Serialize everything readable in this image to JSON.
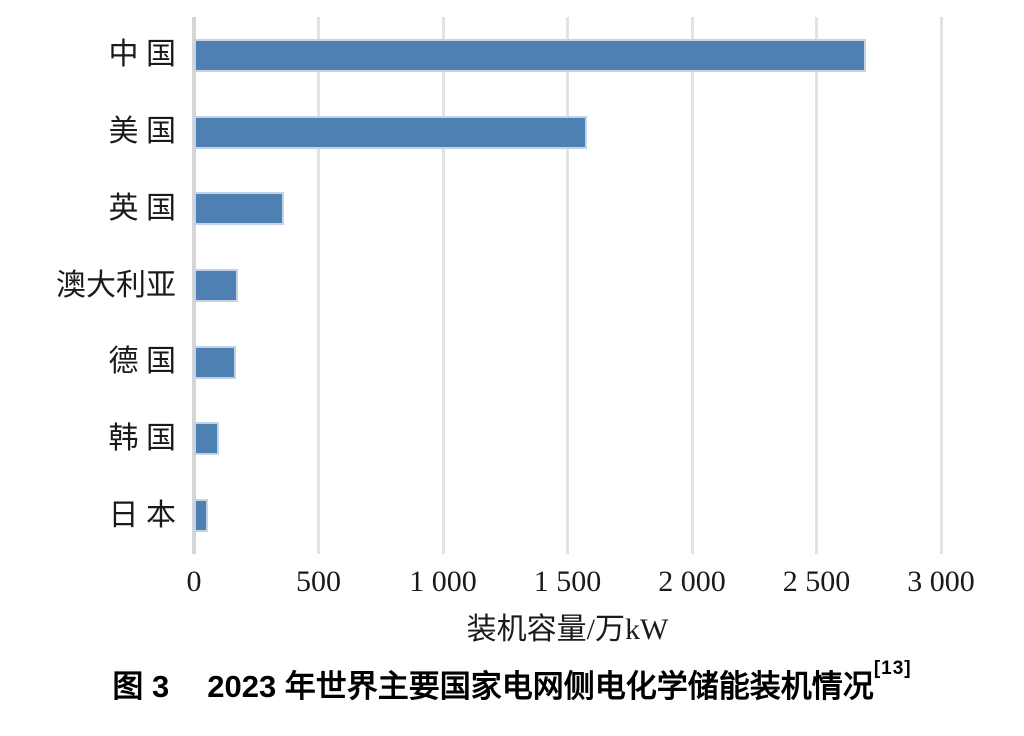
{
  "figure": {
    "caption_label": "图 3",
    "caption_text": "2023 年世界主要国家电网侧电化学储能装机情况",
    "caption_reference": "[13]"
  },
  "chart_data": {
    "type": "bar",
    "orientation": "horizontal",
    "title": "",
    "categories": [
      "中国",
      "美国",
      "英国",
      "澳大利亚",
      "德国",
      "韩国",
      "日本"
    ],
    "values": [
      2700,
      1580,
      360,
      175,
      170,
      100,
      55
    ],
    "xlabel": "装机容量/万kW",
    "xlim": [
      0,
      3000
    ],
    "xticks": [
      0,
      500,
      1000,
      1500,
      2000,
      2500,
      3000
    ],
    "xtick_labels": [
      "0",
      "500",
      "1 000",
      "1 500",
      "2 000",
      "2 500",
      "3 000"
    ],
    "grid": true,
    "legend": false,
    "gridline_style": "vertical-only",
    "colors": {
      "bar_fill": "#4e80b1",
      "bar_border": "#c3d2e4",
      "gridline": "#e2e2e2",
      "zero_axis_line": "#d6d6d6",
      "text": "#1a1a1a",
      "caption_text": "#000000"
    }
  }
}
